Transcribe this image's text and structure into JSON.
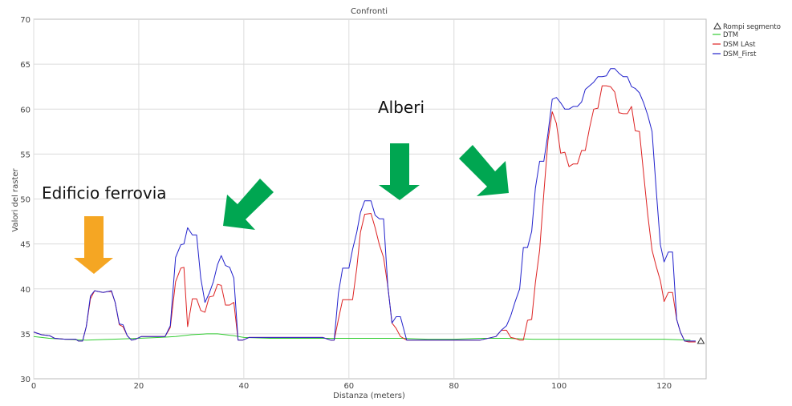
{
  "chart_data": {
    "type": "line",
    "title": "Confronti",
    "xlabel": "Distanza (meters)",
    "ylabel": "Valori del raster",
    "xlim": [
      0,
      128
    ],
    "ylim": [
      30,
      70
    ],
    "x_ticks": [
      0,
      20,
      40,
      60,
      80,
      100,
      120
    ],
    "y_ticks": [
      30,
      35,
      40,
      45,
      50,
      55,
      60,
      65,
      70
    ],
    "grid": true,
    "legend_position": "top-right",
    "legend_marker": {
      "label": "Rompi segmento",
      "symbol": "triangle"
    },
    "series": [
      {
        "name": "DTM",
        "color": "#33cc33",
        "points": [
          [
            0,
            34.7
          ],
          [
            3,
            34.5
          ],
          [
            6,
            34.4
          ],
          [
            10,
            34.3
          ],
          [
            15,
            34.4
          ],
          [
            20,
            34.5
          ],
          [
            24,
            34.6
          ],
          [
            27,
            34.7
          ],
          [
            30,
            34.9
          ],
          [
            33,
            35.0
          ],
          [
            35,
            35.0
          ],
          [
            38,
            34.8
          ],
          [
            40,
            34.6
          ],
          [
            45,
            34.5
          ],
          [
            50,
            34.5
          ],
          [
            55,
            34.5
          ],
          [
            60,
            34.5
          ],
          [
            65,
            34.5
          ],
          [
            70,
            34.5
          ],
          [
            75,
            34.4
          ],
          [
            80,
            34.4
          ],
          [
            85,
            34.5
          ],
          [
            90,
            34.5
          ],
          [
            95,
            34.4
          ],
          [
            100,
            34.4
          ],
          [
            105,
            34.4
          ],
          [
            110,
            34.4
          ],
          [
            115,
            34.4
          ],
          [
            120,
            34.4
          ],
          [
            125,
            34.3
          ]
        ]
      },
      {
        "name": "DSM LAst",
        "color": "#dd2222",
        "points": [
          [
            0,
            35.2
          ],
          [
            1.5,
            34.9
          ],
          [
            3,
            34.8
          ],
          [
            4,
            34.5
          ],
          [
            6,
            34.4
          ],
          [
            8,
            34.4
          ],
          [
            8.5,
            34.2
          ],
          [
            9.3,
            34.2
          ],
          [
            10,
            35.8
          ],
          [
            10.8,
            38.9
          ],
          [
            11.6,
            39.8
          ],
          [
            12.4,
            39.7
          ],
          [
            13.2,
            39.6
          ],
          [
            14,
            39.7
          ],
          [
            14.8,
            39.7
          ],
          [
            15.5,
            38.5
          ],
          [
            16.3,
            36.0
          ],
          [
            17,
            35.8
          ],
          [
            17.8,
            34.8
          ],
          [
            18.6,
            34.3
          ],
          [
            19.4,
            34.4
          ],
          [
            20.5,
            34.7
          ],
          [
            22,
            34.7
          ],
          [
            23.5,
            34.7
          ],
          [
            25,
            34.7
          ],
          [
            26,
            35.7
          ],
          [
            27,
            40.8
          ],
          [
            28,
            42.3
          ],
          [
            28.6,
            42.4
          ],
          [
            29.3,
            35.8
          ],
          [
            30.2,
            38.9
          ],
          [
            31,
            38.9
          ],
          [
            31.8,
            37.6
          ],
          [
            32.6,
            37.4
          ],
          [
            33.4,
            39.1
          ],
          [
            34.2,
            39.2
          ],
          [
            35,
            40.5
          ],
          [
            35.7,
            40.4
          ],
          [
            36.5,
            38.2
          ],
          [
            37.3,
            38.2
          ],
          [
            38.1,
            38.5
          ],
          [
            38.9,
            34.3
          ],
          [
            39.8,
            34.3
          ],
          [
            41,
            34.6
          ],
          [
            45,
            34.6
          ],
          [
            50,
            34.6
          ],
          [
            55,
            34.6
          ],
          [
            56.5,
            34.3
          ],
          [
            57.2,
            34.3
          ],
          [
            58,
            36.6
          ],
          [
            58.8,
            38.8
          ],
          [
            60,
            38.8
          ],
          [
            60.7,
            38.8
          ],
          [
            61.5,
            42.3
          ],
          [
            62.2,
            46.3
          ],
          [
            63,
            48.3
          ],
          [
            64.2,
            48.4
          ],
          [
            65,
            46.8
          ],
          [
            65.8,
            44.9
          ],
          [
            66.6,
            43.5
          ],
          [
            67.4,
            40.3
          ],
          [
            68.2,
            36.2
          ],
          [
            69,
            35.6
          ],
          [
            69.8,
            34.7
          ],
          [
            71,
            34.3
          ],
          [
            75,
            34.3
          ],
          [
            80,
            34.3
          ],
          [
            85,
            34.3
          ],
          [
            88,
            34.7
          ],
          [
            89,
            35.4
          ],
          [
            90,
            35.4
          ],
          [
            90.8,
            34.6
          ],
          [
            91.6,
            34.5
          ],
          [
            92.5,
            34.3
          ],
          [
            93.2,
            34.3
          ],
          [
            94,
            36.5
          ],
          [
            94.8,
            36.6
          ],
          [
            95.5,
            40.7
          ],
          [
            96.3,
            44.3
          ],
          [
            97.1,
            50.6
          ],
          [
            97.9,
            56.5
          ],
          [
            98.7,
            59.7
          ],
          [
            99.5,
            58.4
          ],
          [
            100.3,
            55.1
          ],
          [
            101.1,
            55.2
          ],
          [
            101.9,
            53.6
          ],
          [
            102.7,
            53.9
          ],
          [
            103.5,
            53.9
          ],
          [
            104.3,
            55.4
          ],
          [
            105,
            55.4
          ],
          [
            105.8,
            57.9
          ],
          [
            106.6,
            60.0
          ],
          [
            107.4,
            60.1
          ],
          [
            108.2,
            62.6
          ],
          [
            109,
            62.6
          ],
          [
            109.8,
            62.5
          ],
          [
            110.6,
            61.9
          ],
          [
            111.4,
            59.6
          ],
          [
            112.2,
            59.5
          ],
          [
            113,
            59.5
          ],
          [
            113.8,
            60.3
          ],
          [
            114.5,
            57.6
          ],
          [
            115.3,
            57.5
          ],
          [
            116.1,
            52.8
          ],
          [
            116.9,
            48.2
          ],
          [
            117.7,
            44.3
          ],
          [
            118.5,
            42.5
          ],
          [
            119.3,
            40.9
          ],
          [
            120,
            38.6
          ],
          [
            120.8,
            39.6
          ],
          [
            121.6,
            39.6
          ],
          [
            122.4,
            36.6
          ],
          [
            123.1,
            35.2
          ],
          [
            123.9,
            34.2
          ],
          [
            124.7,
            34.1
          ],
          [
            126,
            34.1
          ]
        ]
      },
      {
        "name": "DSM_First",
        "color": "#2222cc",
        "points": [
          [
            0,
            35.2
          ],
          [
            1.5,
            34.9
          ],
          [
            3,
            34.8
          ],
          [
            4,
            34.5
          ],
          [
            6,
            34.4
          ],
          [
            8,
            34.4
          ],
          [
            8.5,
            34.2
          ],
          [
            9.3,
            34.2
          ],
          [
            10,
            35.8
          ],
          [
            10.8,
            39.2
          ],
          [
            11.6,
            39.8
          ],
          [
            12.4,
            39.7
          ],
          [
            13.2,
            39.6
          ],
          [
            14,
            39.7
          ],
          [
            14.8,
            39.8
          ],
          [
            15.5,
            38.5
          ],
          [
            16.3,
            36.1
          ],
          [
            17,
            36.0
          ],
          [
            17.8,
            34.8
          ],
          [
            18.6,
            34.3
          ],
          [
            19.4,
            34.4
          ],
          [
            20.5,
            34.7
          ],
          [
            22,
            34.7
          ],
          [
            23.5,
            34.7
          ],
          [
            25,
            34.7
          ],
          [
            26,
            35.9
          ],
          [
            27,
            43.5
          ],
          [
            28,
            44.9
          ],
          [
            28.6,
            45.0
          ],
          [
            29.3,
            46.8
          ],
          [
            30.2,
            46.0
          ],
          [
            31,
            46.0
          ],
          [
            31.8,
            41.2
          ],
          [
            32.6,
            38.5
          ],
          [
            33.4,
            39.5
          ],
          [
            34.2,
            40.8
          ],
          [
            35,
            42.7
          ],
          [
            35.7,
            43.7
          ],
          [
            36.5,
            42.6
          ],
          [
            37.3,
            42.4
          ],
          [
            38.1,
            41.2
          ],
          [
            38.9,
            34.3
          ],
          [
            39.8,
            34.3
          ],
          [
            41,
            34.6
          ],
          [
            45,
            34.6
          ],
          [
            50,
            34.6
          ],
          [
            55,
            34.6
          ],
          [
            56.5,
            34.3
          ],
          [
            57.2,
            34.3
          ],
          [
            58,
            39.5
          ],
          [
            58.8,
            42.3
          ],
          [
            60,
            42.3
          ],
          [
            60.7,
            44.4
          ],
          [
            61.5,
            46.3
          ],
          [
            62.2,
            48.5
          ],
          [
            63,
            49.8
          ],
          [
            64.2,
            49.8
          ],
          [
            65,
            48.2
          ],
          [
            65.8,
            47.8
          ],
          [
            66.6,
            47.8
          ],
          [
            67.4,
            40.3
          ],
          [
            68.2,
            36.2
          ],
          [
            69,
            36.9
          ],
          [
            69.8,
            36.9
          ],
          [
            71,
            34.3
          ],
          [
            75,
            34.3
          ],
          [
            80,
            34.3
          ],
          [
            85,
            34.3
          ],
          [
            88,
            34.7
          ],
          [
            89,
            35.4
          ],
          [
            90,
            35.9
          ],
          [
            90.8,
            37.0
          ],
          [
            91.6,
            38.5
          ],
          [
            92.5,
            40.0
          ],
          [
            93.2,
            44.6
          ],
          [
            94,
            44.6
          ],
          [
            94.8,
            46.4
          ],
          [
            95.5,
            51.2
          ],
          [
            96.3,
            54.2
          ],
          [
            97.1,
            54.2
          ],
          [
            97.9,
            57.3
          ],
          [
            98.7,
            61.1
          ],
          [
            99.5,
            61.3
          ],
          [
            100.3,
            60.7
          ],
          [
            101.1,
            60.0
          ],
          [
            101.9,
            60.0
          ],
          [
            102.7,
            60.3
          ],
          [
            103.5,
            60.3
          ],
          [
            104.3,
            60.8
          ],
          [
            105,
            62.2
          ],
          [
            105.8,
            62.6
          ],
          [
            106.6,
            63.0
          ],
          [
            107.4,
            63.6
          ],
          [
            108.2,
            63.6
          ],
          [
            109,
            63.7
          ],
          [
            109.8,
            64.5
          ],
          [
            110.6,
            64.5
          ],
          [
            111.4,
            64.0
          ],
          [
            112.2,
            63.6
          ],
          [
            113,
            63.6
          ],
          [
            113.8,
            62.5
          ],
          [
            114.5,
            62.3
          ],
          [
            115.3,
            61.8
          ],
          [
            116.1,
            60.7
          ],
          [
            116.9,
            59.3
          ],
          [
            117.7,
            57.5
          ],
          [
            118.5,
            51.0
          ],
          [
            119.3,
            44.9
          ],
          [
            120,
            43.0
          ],
          [
            120.8,
            44.1
          ],
          [
            121.6,
            44.1
          ],
          [
            122.4,
            36.6
          ],
          [
            123.1,
            35.2
          ],
          [
            123.9,
            34.2
          ],
          [
            124.7,
            34.2
          ],
          [
            126,
            34.2
          ]
        ]
      }
    ],
    "annotations": [
      {
        "text": "Edificio ferrovia",
        "arrow_color": "#f5a623",
        "arrow_direction": "down"
      },
      {
        "text": "Alberi",
        "arrow_color": "#00a651",
        "arrow_direction": "down"
      },
      {
        "text": "",
        "arrow_color": "#00a651",
        "arrow_direction": "down-left"
      },
      {
        "text": "",
        "arrow_color": "#00a651",
        "arrow_direction": "down-left"
      }
    ]
  }
}
